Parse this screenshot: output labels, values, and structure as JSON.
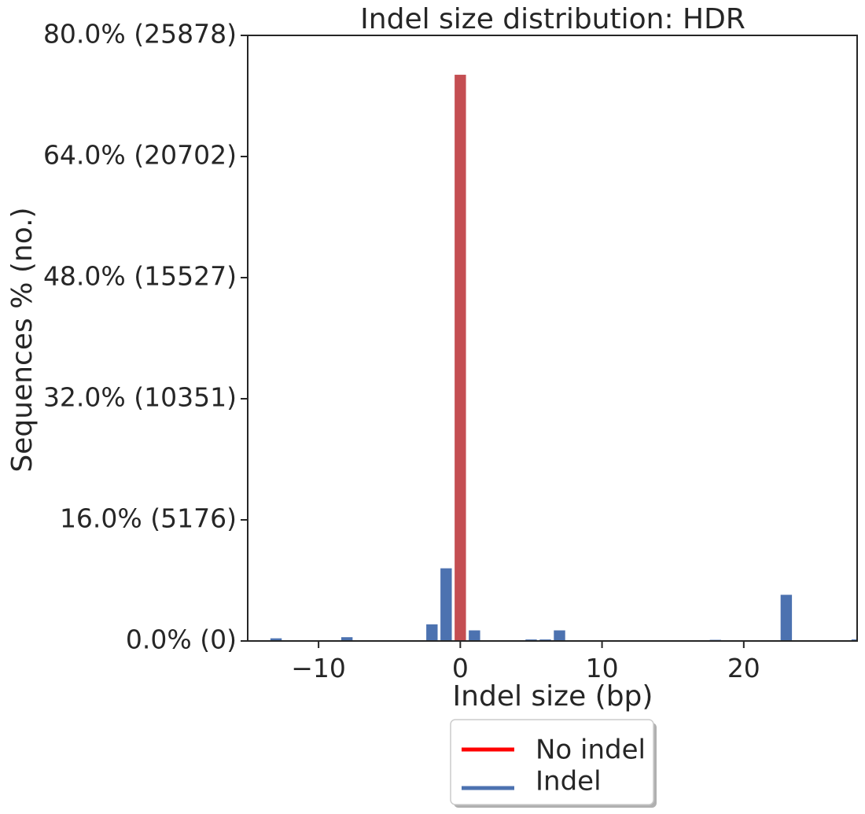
{
  "chart_data": {
    "type": "bar",
    "title": "Indel size distribution: HDR",
    "xlabel": "Indel size (bp)",
    "ylabel": "Sequences % (no.)",
    "xlim": [
      -15,
      28
    ],
    "ylim": [
      0,
      80
    ],
    "x_ticks": [
      {
        "value": -10,
        "label": "−10"
      },
      {
        "value": 0,
        "label": "0"
      },
      {
        "value": 10,
        "label": "10"
      },
      {
        "value": 20,
        "label": "20"
      }
    ],
    "y_ticks": [
      {
        "value": 0,
        "label": "0.0% (0)"
      },
      {
        "value": 16,
        "label": "16.0% (5176)"
      },
      {
        "value": 32,
        "label": "32.0% (10351)"
      },
      {
        "value": 48,
        "label": "48.0% (15527)"
      },
      {
        "value": 64,
        "label": "64.0% (20702)"
      },
      {
        "value": 80,
        "label": "80.0% (25878)"
      }
    ],
    "series": [
      {
        "name": "No indel",
        "color": "#c44e52",
        "points": [
          {
            "x": 0,
            "y": 74.8
          }
        ]
      },
      {
        "name": "Indel",
        "color": "#4c72b0",
        "points": [
          {
            "x": -13,
            "y": 0.35
          },
          {
            "x": -8,
            "y": 0.5
          },
          {
            "x": -2,
            "y": 2.2
          },
          {
            "x": -1,
            "y": 9.6
          },
          {
            "x": 1,
            "y": 1.4
          },
          {
            "x": 5,
            "y": 0.2
          },
          {
            "x": 6,
            "y": 0.2
          },
          {
            "x": 7,
            "y": 1.4
          },
          {
            "x": 18,
            "y": 0.15
          },
          {
            "x": 23,
            "y": 6.1
          },
          {
            "x": 28,
            "y": 0.2
          }
        ]
      }
    ],
    "legend": {
      "placement": "below",
      "entries": [
        {
          "label": "No indel",
          "color": "#ff0000"
        },
        {
          "label": "Indel",
          "color": "#4c72b0"
        }
      ]
    },
    "grid": false
  }
}
